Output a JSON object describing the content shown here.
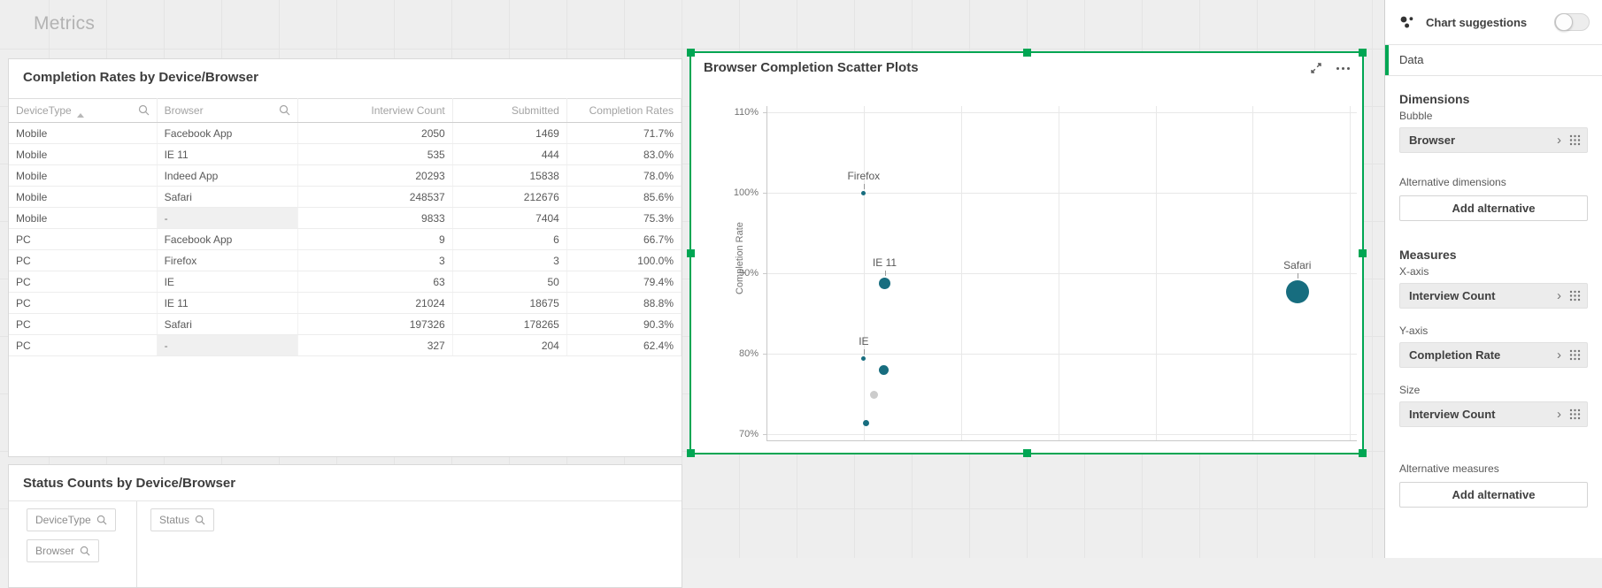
{
  "page": {
    "title": "Metrics"
  },
  "completion_table": {
    "title": "Completion Rates by Device/Browser",
    "columns": [
      "DeviceType",
      "Browser",
      "Interview Count",
      "Submitted",
      "Completion Rates"
    ],
    "rows": [
      [
        "Mobile",
        "Facebook App",
        "2050",
        "1469",
        "71.7%"
      ],
      [
        "Mobile",
        "IE 11",
        "535",
        "444",
        "83.0%"
      ],
      [
        "Mobile",
        "Indeed App",
        "20293",
        "15838",
        "78.0%"
      ],
      [
        "Mobile",
        "Safari",
        "248537",
        "212676",
        "85.6%"
      ],
      [
        "Mobile",
        "-",
        "9833",
        "7404",
        "75.3%"
      ],
      [
        "PC",
        "Facebook App",
        "9",
        "6",
        "66.7%"
      ],
      [
        "PC",
        "Firefox",
        "3",
        "3",
        "100.0%"
      ],
      [
        "PC",
        "IE",
        "63",
        "50",
        "79.4%"
      ],
      [
        "PC",
        "IE 11",
        "21024",
        "18675",
        "88.8%"
      ],
      [
        "PC",
        "Safari",
        "197326",
        "178265",
        "90.3%"
      ],
      [
        "PC",
        "-",
        "327",
        "204",
        "62.4%"
      ]
    ]
  },
  "status_panel": {
    "title": "Status Counts by Device/Browser",
    "filters": [
      "DeviceType",
      "Status",
      "Browser"
    ]
  },
  "chart_data": {
    "type": "scatter",
    "title": "Browser Completion Scatter Plots",
    "xlabel": "Interview Count",
    "ylabel": "Completion Rate",
    "x_range": [
      -99000,
      507000
    ],
    "y_range": [
      69.2,
      110.8
    ],
    "x_gridlines": [
      0,
      100000,
      200000,
      300000,
      400000,
      500000
    ],
    "y_ticks": [
      {
        "value": 70,
        "label": "70%"
      },
      {
        "value": 80,
        "label": "80%"
      },
      {
        "value": 90,
        "label": "90%"
      },
      {
        "value": 100,
        "label": "100%"
      },
      {
        "value": 110,
        "label": "110%"
      }
    ],
    "point_color": "#176d7f",
    "null_point_color": "#cccccc",
    "points": [
      {
        "label": "Firefox",
        "x": 3,
        "y": 100.0,
        "r": 2.5,
        "labeled": true
      },
      {
        "label": "IE",
        "x": 63,
        "y": 79.4,
        "r": 2.5,
        "labeled": true
      },
      {
        "label": "Facebook App",
        "x": 2059,
        "y": 71.4,
        "r": 3.5,
        "labeled": false
      },
      {
        "label": "-",
        "x": 10160,
        "y": 74.9,
        "r": 4.5,
        "labeled": false,
        "null_value": true
      },
      {
        "label": "Indeed App",
        "x": 20293,
        "y": 78.0,
        "r": 5.5,
        "labeled": false
      },
      {
        "label": "IE 11",
        "x": 21559,
        "y": 88.7,
        "r": 6.5,
        "labeled": true
      },
      {
        "label": "Safari",
        "x": 445863,
        "y": 87.7,
        "r": 13,
        "labeled": true
      }
    ],
    "legend": false,
    "grid": true
  },
  "sidebar": {
    "chart_suggestions": {
      "label": "Chart suggestions",
      "toggle_on": false
    },
    "tab": "Data",
    "dimensions": {
      "heading": "Dimensions",
      "slots": [
        {
          "label": "Bubble",
          "field": "Browser"
        }
      ],
      "alt_label": "Alternative dimensions",
      "alt_button": "Add alternative"
    },
    "measures": {
      "heading": "Measures",
      "slots": [
        {
          "label": "X-axis",
          "field": "Interview Count"
        },
        {
          "label": "Y-axis",
          "field": "Completion Rate"
        },
        {
          "label": "Size",
          "field": "Interview Count"
        }
      ],
      "alt_label": "Alternative measures",
      "alt_button": "Add alternative"
    }
  },
  "colors": {
    "accent_green": "#00a653",
    "point_teal": "#176d7f"
  }
}
